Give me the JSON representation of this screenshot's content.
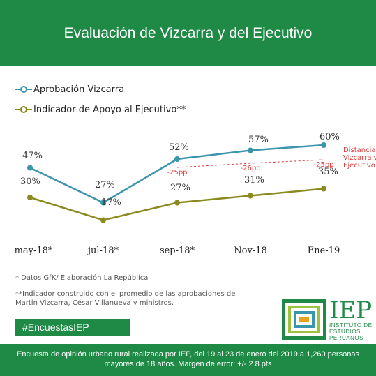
{
  "header": {
    "title": "Evaluación de Vizcarra y del Ejecutivo"
  },
  "legend": [
    {
      "label": "Aprobación Vizcarra",
      "color": "#3a95ad"
    },
    {
      "label": "Indicador de Apoyo al Ejecutivo**",
      "color": "#8a8a1e"
    }
  ],
  "chart_data": {
    "type": "line",
    "categories": [
      "may-18*",
      "jul-18*",
      "sep-18*",
      "Nov-18",
      "Ene-19"
    ],
    "series": [
      {
        "name": "Aprobación Vizcarra",
        "values": [
          47,
          27,
          52,
          57,
          60
        ],
        "labels": [
          "47%",
          "27%",
          "52%",
          "57%",
          "60%"
        ],
        "color": "#3a95ad"
      },
      {
        "name": "Indicador de Apoyo al Ejecutivo**",
        "values": [
          30,
          17,
          27,
          31,
          35
        ],
        "labels": [
          "30%",
          "17%",
          "27%",
          "31%",
          "35%"
        ],
        "color": "#8a8a1e"
      }
    ],
    "gaps": [
      {
        "category": "sep-18*",
        "label": "-25pp"
      },
      {
        "category": "Nov-18",
        "label": "-26pp"
      },
      {
        "category": "Ene-19",
        "label": "-25pp"
      }
    ],
    "gap_annotation": "Distancia Vizcarra vs Ejecutivo",
    "gap_color": "#e03c3c"
  },
  "notes": {
    "source": "* Datos GfK/ Elaboración La República",
    "indicator": "**Indicador construido con el promedio de las aprobaciones de Martín Vizcarra, César Villanueva y ministros."
  },
  "hashtag": "#EncuestasIEP",
  "logo": {
    "acronym": "IEP",
    "name": "INSTITUTO DE ESTUDIOS PERUANOS"
  },
  "footer": {
    "text": "Encuesta de opinión urbano rural realizada por IEP, del 19 al 23 de enero del 2019 a 1,260 personas mayores de 18 años. Margen de error: +/- 2.8 pts"
  },
  "colors": {
    "brand_green": "#1e8a46"
  }
}
